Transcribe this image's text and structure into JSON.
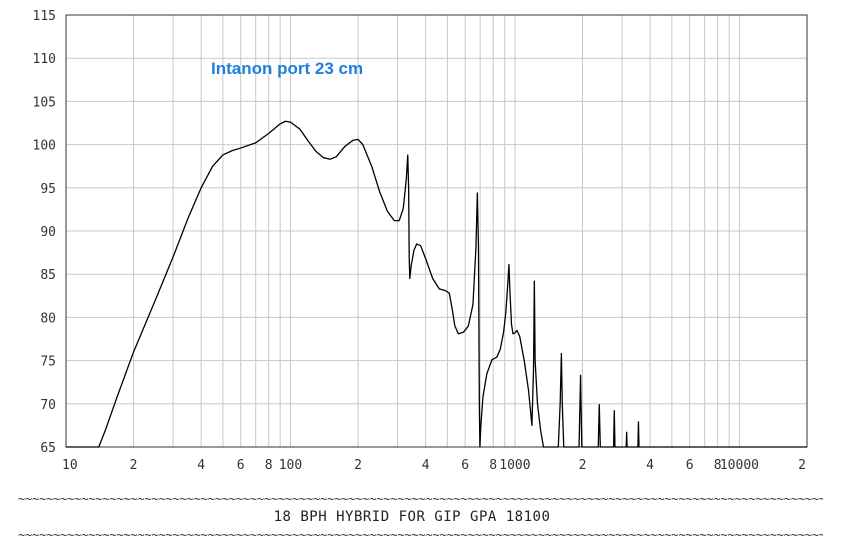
{
  "chart_data": {
    "type": "line",
    "title": "",
    "annotation": "Intanon port 23 cm",
    "xlabel": "",
    "ylabel": "",
    "xscale": "log",
    "xlim": [
      10,
      20000
    ],
    "ylim": [
      65,
      115
    ],
    "grid": true,
    "x_tick_labels": [
      {
        "x": 10,
        "label": "10"
      },
      {
        "x": 20,
        "label": "2"
      },
      {
        "x": 40,
        "label": "4"
      },
      {
        "x": 60,
        "label": "6"
      },
      {
        "x": 80,
        "label": "8"
      },
      {
        "x": 100,
        "label": "100"
      },
      {
        "x": 200,
        "label": "2"
      },
      {
        "x": 400,
        "label": "4"
      },
      {
        "x": 600,
        "label": "6"
      },
      {
        "x": 800,
        "label": "8"
      },
      {
        "x": 1000,
        "label": "1000"
      },
      {
        "x": 2000,
        "label": "2"
      },
      {
        "x": 4000,
        "label": "4"
      },
      {
        "x": 6000,
        "label": "6"
      },
      {
        "x": 8000,
        "label": "8"
      },
      {
        "x": 10000,
        "label": "10000"
      },
      {
        "x": 20000,
        "label": "2"
      }
    ],
    "y_ticks": [
      65,
      70,
      75,
      80,
      85,
      90,
      95,
      100,
      105,
      110,
      115
    ],
    "series": [
      {
        "color": "#000000",
        "points": [
          [
            10,
            65
          ],
          [
            14,
            65
          ],
          [
            15,
            67
          ],
          [
            17,
            71
          ],
          [
            20,
            76
          ],
          [
            25,
            82
          ],
          [
            30,
            87
          ],
          [
            35,
            91.5
          ],
          [
            40,
            95
          ],
          [
            45,
            97.5
          ],
          [
            50,
            98.8
          ],
          [
            55,
            99.3
          ],
          [
            60,
            99.6
          ],
          [
            70,
            100.2
          ],
          [
            80,
            101.3
          ],
          [
            90,
            102.4
          ],
          [
            95,
            102.7
          ],
          [
            100,
            102.6
          ],
          [
            110,
            101.8
          ],
          [
            120,
            100.4
          ],
          [
            130,
            99.2
          ],
          [
            140,
            98.5
          ],
          [
            150,
            98.3
          ],
          [
            160,
            98.6
          ],
          [
            175,
            99.8
          ],
          [
            190,
            100.5
          ],
          [
            200,
            100.6
          ],
          [
            210,
            100
          ],
          [
            230,
            97.5
          ],
          [
            250,
            94.5
          ],
          [
            270,
            92.3
          ],
          [
            290,
            91.2
          ],
          [
            305,
            91.2
          ],
          [
            318,
            92.6
          ],
          [
            328,
            96
          ],
          [
            333,
            98.8
          ],
          [
            336,
            95
          ],
          [
            338,
            87
          ],
          [
            340,
            84.5
          ],
          [
            345,
            86
          ],
          [
            355,
            87.8
          ],
          [
            365,
            88.5
          ],
          [
            380,
            88.3
          ],
          [
            400,
            86.8
          ],
          [
            430,
            84.5
          ],
          [
            460,
            83.3
          ],
          [
            490,
            83.1
          ],
          [
            510,
            82.8
          ],
          [
            525,
            81
          ],
          [
            540,
            79
          ],
          [
            560,
            78.1
          ],
          [
            590,
            78.3
          ],
          [
            620,
            79
          ],
          [
            650,
            81.5
          ],
          [
            670,
            88
          ],
          [
            680,
            94.4
          ],
          [
            688,
            88
          ],
          [
            694,
            70
          ],
          [
            698,
            65
          ],
          [
            705,
            67.5
          ],
          [
            720,
            70.8
          ],
          [
            750,
            73.5
          ],
          [
            790,
            75.1
          ],
          [
            830,
            75.4
          ],
          [
            860,
            76.3
          ],
          [
            890,
            78.3
          ],
          [
            910,
            80.5
          ],
          [
            930,
            84
          ],
          [
            940,
            86.1
          ],
          [
            950,
            83
          ],
          [
            965,
            79.2
          ],
          [
            980,
            78.1
          ],
          [
            1000,
            78.2
          ],
          [
            1020,
            78.5
          ],
          [
            1050,
            77.8
          ],
          [
            1100,
            75
          ],
          [
            1150,
            71.5
          ],
          [
            1190,
            67.5
          ],
          [
            1210,
            74
          ],
          [
            1220,
            84.2
          ],
          [
            1230,
            75
          ],
          [
            1260,
            70
          ],
          [
            1300,
            67
          ],
          [
            1340,
            65
          ],
          [
            1560,
            65
          ],
          [
            1590,
            70
          ],
          [
            1610,
            75.8
          ],
          [
            1625,
            70
          ],
          [
            1650,
            65
          ],
          [
            1930,
            65
          ],
          [
            1960,
            73.3
          ],
          [
            1985,
            65
          ],
          [
            2350,
            65
          ],
          [
            2375,
            69.9
          ],
          [
            2400,
            65
          ],
          [
            2750,
            65
          ],
          [
            2770,
            69.2
          ],
          [
            2790,
            65
          ],
          [
            3130,
            65
          ],
          [
            3145,
            66.7
          ],
          [
            3160,
            65
          ],
          [
            3530,
            65
          ],
          [
            3550,
            67.9
          ],
          [
            3570,
            65
          ],
          [
            20000,
            65
          ]
        ]
      }
    ]
  },
  "footer": {
    "tilde_line": "~~~~~~~~~~~~~~~~~~~~~~~~~~~~~~~~~~~~~~~~~~~~~~~~~~~~~~~~~~~~~~~~~~~~~~~~~~~~~~~~~~~~~~~~~~~~~~~~~~~~~~~~~~~~~~~~~~~~~~~~~~~~~~~~~~~~~~~~~~~~",
    "title": "18 BPH HYBRID FOR GIP GPA 18100"
  },
  "colors": {
    "grid": "#c8c8c8",
    "axis": "#333333",
    "curve": "#000000",
    "annotation": "#1e7fdc"
  }
}
